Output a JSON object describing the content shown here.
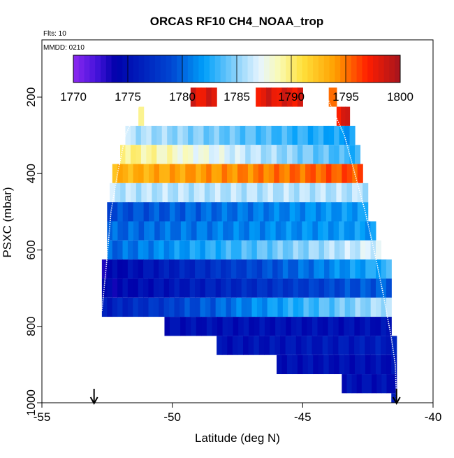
{
  "chart_data": {
    "type": "heatmap",
    "title": "ORCAS RF10 CH4_NOAA_trop",
    "flights_note": "Flts: 10",
    "date_note": "MMDD: 0210",
    "xlabel": "Latitude (deg N)",
    "ylabel": "PSXC (mbar)",
    "xlim": [
      -55,
      -40
    ],
    "ylim": [
      1000,
      50
    ],
    "x_ticks": [
      -55,
      -50,
      -45,
      -40
    ],
    "x_tick_labels": [
      "-55",
      "-50",
      "-45",
      "-40"
    ],
    "y_ticks": [
      200,
      400,
      600,
      800,
      1000
    ],
    "y_tick_labels": [
      "200",
      "400",
      "600",
      "800",
      "1000"
    ],
    "colorbar": {
      "min": 1770,
      "max": 1800,
      "ticks": [
        1770,
        1775,
        1780,
        1785,
        1790,
        1795,
        1800
      ],
      "tick_labels": [
        "1770",
        "1775",
        "1780",
        "1785",
        "1790",
        "1795",
        "1800"
      ]
    },
    "arrows_lat": [
      -53.0,
      -41.4
    ],
    "rows": [
      {
        "p_top": 175,
        "p_bot": 225,
        "lat_from": -49.3,
        "lat_to": -48.3,
        "v_from": 1798,
        "v_to": 1798
      },
      {
        "p_top": 175,
        "p_bot": 225,
        "lat_from": -46.8,
        "lat_to": -45.0,
        "v_from": 1798,
        "v_to": 1798
      },
      {
        "p_top": 175,
        "p_bot": 225,
        "lat_from": -44.0,
        "lat_to": -43.7,
        "v_from": 1795,
        "v_to": 1795
      },
      {
        "p_top": 225,
        "p_bot": 275,
        "lat_from": -51.3,
        "lat_to": -51.1,
        "v_from": 1789,
        "v_to": 1789
      },
      {
        "p_top": 225,
        "p_bot": 275,
        "lat_from": -43.7,
        "lat_to": -43.2,
        "v_from": 1798,
        "v_to": 1798
      },
      {
        "p_top": 275,
        "p_bot": 325,
        "lat_from": -51.8,
        "lat_to": -43.0,
        "v_from": 1786,
        "v_to": 1782
      },
      {
        "p_top": 325,
        "p_bot": 375,
        "lat_from": -52.0,
        "lat_to": -42.8,
        "v_from": 1790,
        "v_to": 1783
      },
      {
        "p_top": 375,
        "p_bot": 425,
        "lat_from": -52.3,
        "lat_to": -42.7,
        "v_from": 1793,
        "v_to": 1796
      },
      {
        "p_top": 425,
        "p_bot": 475,
        "lat_from": -52.4,
        "lat_to": -42.5,
        "v_from": 1786,
        "v_to": 1786
      },
      {
        "p_top": 475,
        "p_bot": 525,
        "lat_from": -52.5,
        "lat_to": -42.5,
        "v_from": 1779,
        "v_to": 1782
      },
      {
        "p_top": 525,
        "p_bot": 575,
        "lat_from": -52.5,
        "lat_to": -42.2,
        "v_from": 1780,
        "v_to": 1782
      },
      {
        "p_top": 575,
        "p_bot": 625,
        "lat_from": -52.5,
        "lat_to": -42.0,
        "v_from": 1780,
        "v_to": 1787
      },
      {
        "p_top": 625,
        "p_bot": 675,
        "lat_from": -52.7,
        "lat_to": -41.6,
        "v_from": 1774,
        "v_to": 1783
      },
      {
        "p_top": 675,
        "p_bot": 725,
        "lat_from": -52.7,
        "lat_to": -41.6,
        "v_from": 1774,
        "v_to": 1780
      },
      {
        "p_top": 725,
        "p_bot": 775,
        "lat_from": -52.7,
        "lat_to": -41.6,
        "v_from": 1776,
        "v_to": 1786
      },
      {
        "p_top": 775,
        "p_bot": 825,
        "lat_from": -50.3,
        "lat_to": -41.6,
        "v_from": 1775,
        "v_to": 1775
      },
      {
        "p_top": 825,
        "p_bot": 875,
        "lat_from": -48.3,
        "lat_to": -41.4,
        "v_from": 1775,
        "v_to": 1776
      },
      {
        "p_top": 875,
        "p_bot": 925,
        "lat_from": -46.0,
        "lat_to": -41.4,
        "v_from": 1775,
        "v_to": 1775
      },
      {
        "p_top": 925,
        "p_bot": 975,
        "lat_from": -43.5,
        "lat_to": -41.4,
        "v_from": 1775,
        "v_to": 1775
      },
      {
        "p_top": 975,
        "p_bot": 1000,
        "lat_from": -41.6,
        "lat_to": -41.4,
        "v_from": 1775,
        "v_to": 1775
      }
    ],
    "flight_track": [
      {
        "lat": -41.4,
        "p": 990
      },
      {
        "lat": -41.45,
        "p": 900
      },
      {
        "lat": -41.6,
        "p": 830
      },
      {
        "lat": -41.9,
        "p": 720
      },
      {
        "lat": -42.2,
        "p": 620
      },
      {
        "lat": -42.6,
        "p": 500
      },
      {
        "lat": -43.0,
        "p": 400
      },
      {
        "lat": -43.4,
        "p": 300
      },
      {
        "lat": -43.8,
        "p": 240
      },
      {
        "lat": -44.1,
        "p": 195
      }
    ],
    "flight_track_2": [
      {
        "lat": -51.3,
        "p": 225
      },
      {
        "lat": -51.8,
        "p": 300
      },
      {
        "lat": -52.1,
        "p": 400
      },
      {
        "lat": -52.35,
        "p": 500
      },
      {
        "lat": -52.5,
        "p": 620
      },
      {
        "lat": -52.7,
        "p": 760
      }
    ]
  }
}
